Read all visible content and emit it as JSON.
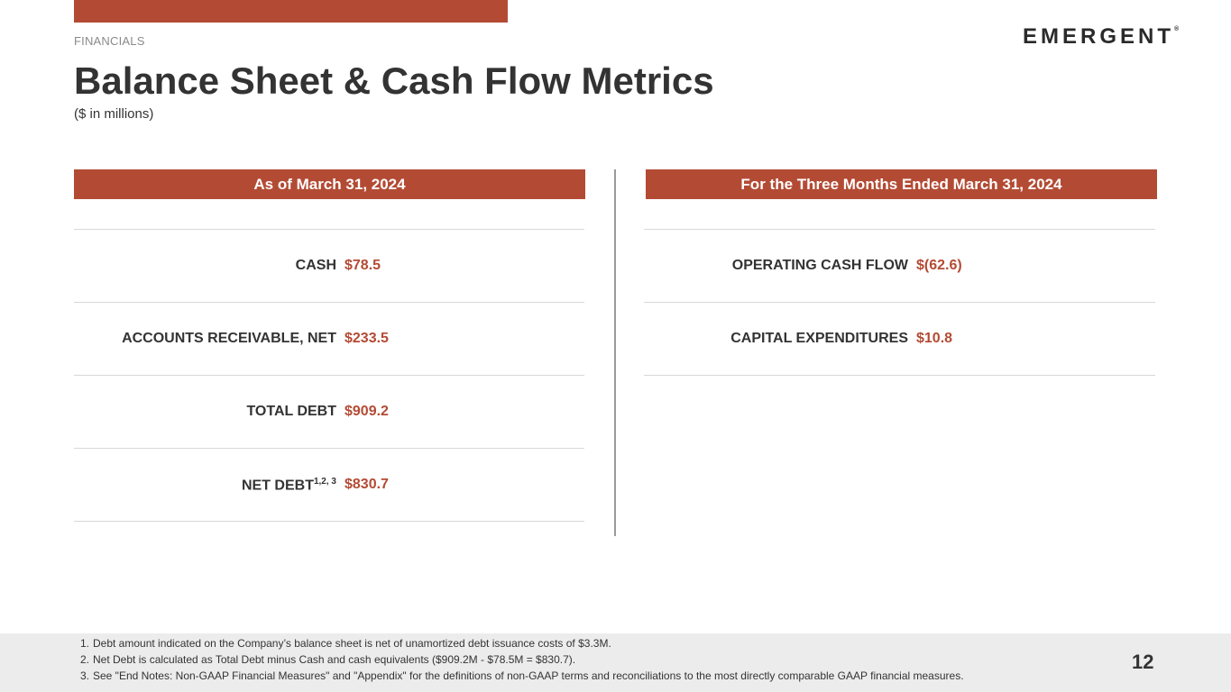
{
  "header": {
    "section_label": "FINANCIALS",
    "logo_text": "EMERGENT",
    "logo_mark": "®",
    "title": "Balance Sheet & Cash Flow Metrics",
    "subtitle": "($ in millions)"
  },
  "left_panel": {
    "heading": "As of March 31, 2024",
    "rows": [
      {
        "label": "CASH",
        "sup": "",
        "value": "$78.5"
      },
      {
        "label": "ACCOUNTS RECEIVABLE, NET",
        "sup": "",
        "value": "$233.5"
      },
      {
        "label": "TOTAL DEBT",
        "sup": "",
        "value": "$909.2"
      },
      {
        "label": "NET DEBT",
        "sup": "1,2, 3",
        "value": "$830.7"
      }
    ]
  },
  "right_panel": {
    "heading": "For the Three Months Ended March 31, 2024",
    "rows": [
      {
        "label": "OPERATING CASH FLOW",
        "value": "$(62.6)"
      },
      {
        "label": "CAPITAL EXPENDITURES",
        "value": "$10.8"
      }
    ]
  },
  "footnotes": [
    {
      "num": "1.",
      "text": "Debt amount indicated on the Company’s balance sheet is net of unamortized debt issuance costs of $3.3M."
    },
    {
      "num": "2.",
      "text": "Net Debt is calculated as Total Debt minus Cash and cash equivalents ($909.2M - $78.5M = $830.7)."
    },
    {
      "num": "3.",
      "text": "See \"End Notes: Non-GAAP Financial Measures\" and \"Appendix\" for the definitions of non-GAAP terms and reconciliations to the most directly comparable GAAP financial measures."
    }
  ],
  "page_number": "12",
  "colors": {
    "accent": "#b34b34",
    "text": "#333333",
    "footer_bg": "#ececec"
  }
}
